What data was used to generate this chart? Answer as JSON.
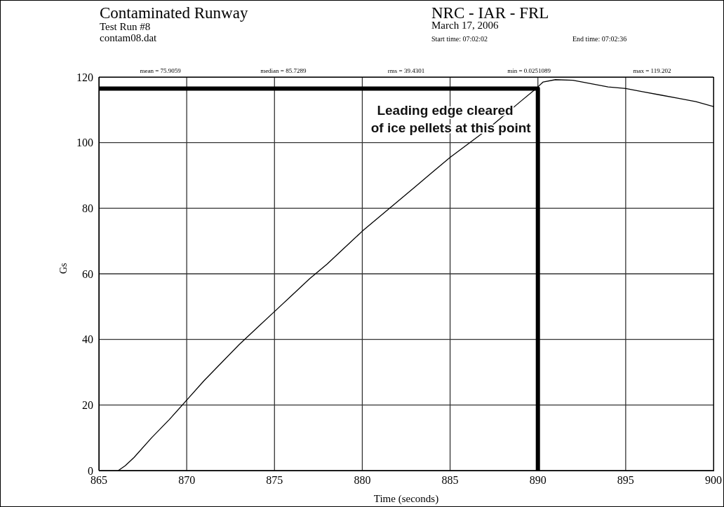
{
  "chart_data": {
    "type": "line",
    "title": "Contaminated Runway",
    "subtitle": "Test Run #8",
    "xlabel": "Time (seconds)",
    "ylabel": "Gs",
    "annotations": [
      "contam08.dat",
      "NRC - IAR - FRL",
      "March 17, 2006",
      "Start time: 07:02:02",
      "End time: 07:02:36",
      "mean = 75.9059",
      "median = 85.7289",
      "rms = 39.4301",
      "min = 0.0251089",
      "max = 119.202",
      {
        "text": "Leading edge cleared of ice pellets at this point",
        "x": 890,
        "y": 116.5
      }
    ],
    "series": [
      {
        "color": "#000000",
        "x": [
          866.1,
          866.5,
          867,
          868,
          869,
          870,
          871,
          872,
          873,
          874,
          875,
          876,
          877,
          878,
          879,
          880,
          881,
          882,
          883,
          884,
          885,
          886,
          887,
          888,
          889,
          889.9,
          890.3,
          891,
          892,
          893,
          894,
          895,
          896,
          897,
          898,
          899,
          900
        ],
        "values": [
          0,
          1.5,
          4,
          10,
          15.5,
          21.5,
          27.5,
          33,
          38.5,
          43.5,
          48.5,
          53.5,
          58.5,
          63,
          68,
          73,
          77.5,
          82,
          86.5,
          91,
          95.5,
          99.5,
          103.5,
          108,
          112.5,
          116.5,
          118.5,
          119.2,
          119,
          118,
          117,
          116.5,
          115.5,
          114.5,
          113.5,
          112.5,
          111
        ]
      },
      {
        "color": "#000000",
        "x": [
          865,
          890,
          890
        ],
        "values": [
          116.5,
          116.5,
          0
        ]
      }
    ],
    "xlim": [
      865,
      900
    ],
    "xticks": [
      865,
      870,
      875,
      880,
      885,
      890,
      895,
      900
    ],
    "ylim": [
      0,
      120
    ],
    "yticks": [
      0,
      20,
      40,
      60,
      80,
      100,
      120
    ],
    "grid": true,
    "marker": "none",
    "line_style": "solid"
  }
}
